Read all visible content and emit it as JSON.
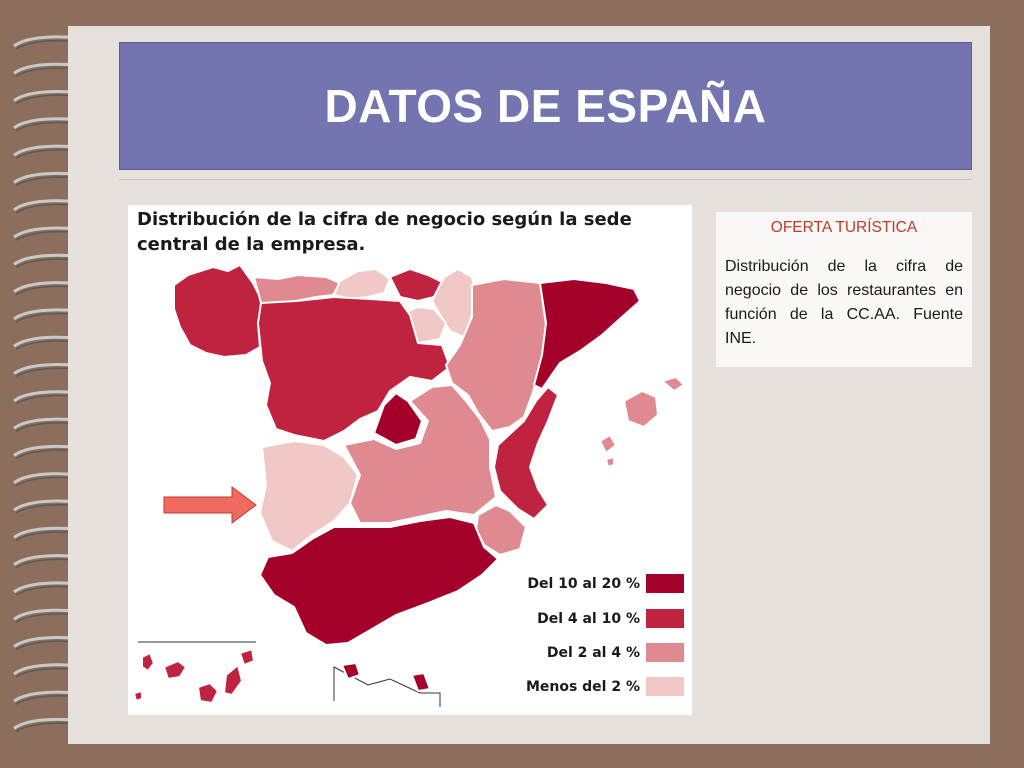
{
  "slide": {
    "title": "DATOS DE ESPAÑA"
  },
  "map": {
    "title": "Distribución de la cifra de negocio según la sede central de la empresa.",
    "legend": [
      {
        "label": "Del 10 al 20 %",
        "color": "#a3002a"
      },
      {
        "label": "Del 4 al 10 %",
        "color": "#c0233f"
      },
      {
        "label": "Del 2 al 4 %",
        "color": "#de8a90"
      },
      {
        "label": "Menos del 2 %",
        "color": "#f0c8c6"
      }
    ],
    "highlight_arrow_color": "#f06a60"
  },
  "info": {
    "heading": "OFERTA TURÍSTICA",
    "body": "Distribución de la cifra de negocio de los restaurantes en función de la CC.AA. Fuente INE."
  }
}
